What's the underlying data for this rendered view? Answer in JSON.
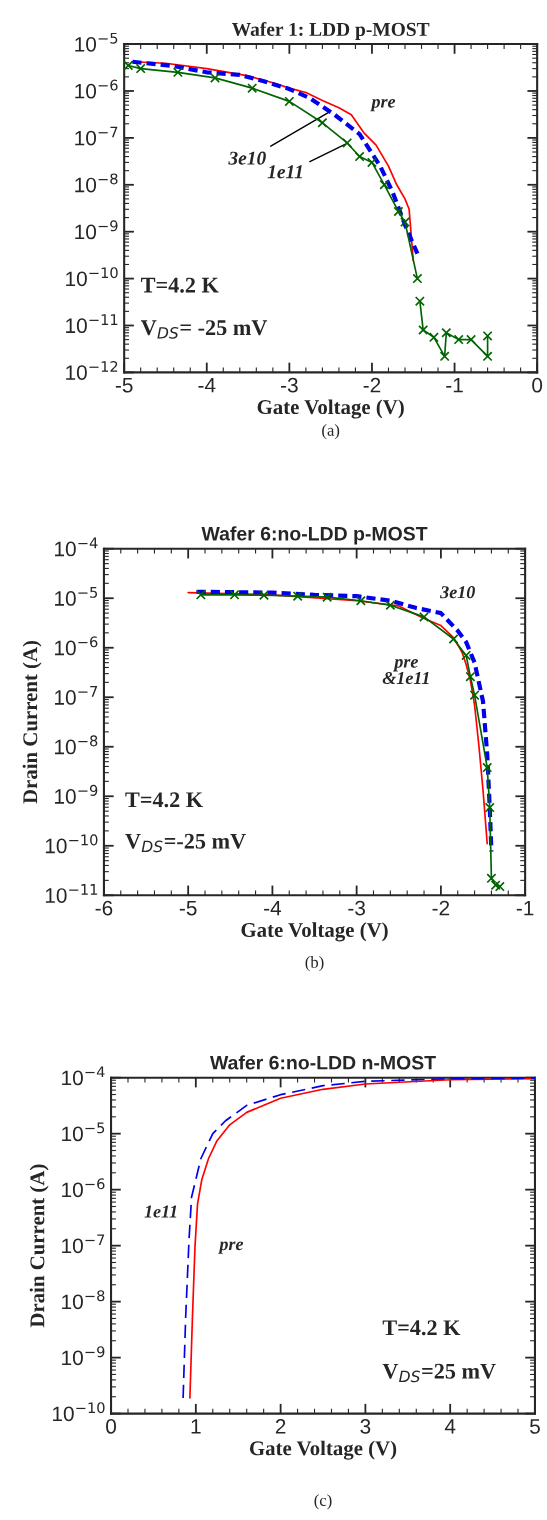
{
  "chart_data": [
    {
      "type": "line",
      "title": "Wafer 1: LDD p-MOST",
      "xlabel": "Gate Voltage (V)",
      "log": "y",
      "xlim": [
        -5,
        0
      ],
      "xticks": [
        -5,
        -4,
        -3,
        -2,
        -1,
        0
      ],
      "ylim": [
        1e-12,
        1e-05
      ],
      "yticks": [
        {
          "value": 1e-12,
          "label": "10$^{−12}$"
        },
        {
          "value": 1e-11,
          "label": "10$^{−11}$"
        },
        {
          "value": 1e-10,
          "label": "10$^{−10}$"
        },
        {
          "value": 1e-09,
          "label": "10$^{−9}$"
        },
        {
          "value": 1e-08,
          "label": "10$^{−8}$"
        },
        {
          "value": 1e-07,
          "label": "10$^{−7}$"
        },
        {
          "value": 1e-06,
          "label": "10$^{−6}$"
        },
        {
          "value": 1e-05,
          "label": "10$^{−5}$"
        }
      ],
      "series": [
        {
          "color": "#ff0000",
          "line_style": "solid",
          "marker": "none",
          "x": [
            -4.9,
            -4.5,
            -4.0,
            -3.5,
            -3.2,
            -3.0,
            -2.8,
            -2.6,
            -2.4,
            -2.25,
            -2.1,
            -1.95,
            -1.8,
            -1.7,
            -1.6,
            -1.55,
            -1.5
          ],
          "values": [
            4.2e-06,
            3.9e-06,
            3e-06,
            2.1e-06,
            1.5e-06,
            1.15e-06,
            9.3e-07,
            6.3e-07,
            4.4e-07,
            3.1e-07,
            1.3e-07,
            7e-08,
            2.5e-08,
            1e-08,
            5e-09,
            3e-09,
            2.4e-10
          ]
        },
        {
          "color": "#0000ee",
          "line_style": "dashed",
          "marker": "none",
          "x": [
            -4.9,
            -4.4,
            -4.0,
            -3.6,
            -3.3,
            -3.0,
            -2.75,
            -2.45,
            -2.15,
            -1.9,
            -1.75,
            -1.6,
            -1.45
          ],
          "values": [
            4.2e-06,
            3.4e-06,
            2.5e-06,
            2.2e-06,
            1.6e-06,
            1.1e-06,
            7e-07,
            3.1e-07,
            1.2e-07,
            2.5e-08,
            7e-09,
            1.4e-09,
            3.4e-10
          ]
        },
        {
          "color": "#006400",
          "line_style": "solid",
          "marker": "cross",
          "x": [
            -4.95,
            -4.8,
            -4.35,
            -3.9,
            -3.45,
            -3.0,
            -2.6,
            -2.3,
            -2.15,
            -2.0,
            -1.85,
            -1.68,
            -1.6,
            -1.45,
            -1.43,
            -1.42,
            -1.38,
            -1.25,
            -1.12,
            -1.1,
            -0.95,
            -0.8,
            -0.6,
            -0.6
          ],
          "values": [
            3.5e-06,
            3e-06,
            2.5e-06,
            1.9e-06,
            1.15e-06,
            6e-07,
            2.1e-07,
            7.8e-08,
            4e-08,
            3e-08,
            1e-08,
            2.7e-09,
            1.6e-09,
            1e-10,
            null,
            3.3e-11,
            8e-12,
            5.6e-12,
            2.2e-12,
            7e-12,
            5e-12,
            5e-12,
            2.2e-12,
            6e-12
          ]
        }
      ],
      "annotations": [
        "pre",
        {
          "text": "3e10",
          "x": -2.5,
          "y": 3.7e-07
        },
        {
          "text": "1e11",
          "x": -2.29,
          "y": 7.8e-08
        },
        "T=4.2 K",
        "V$_{DS}$= -25 mV",
        "(a)"
      ]
    },
    {
      "type": "line",
      "title": "Wafer 6:no-LDD p-MOST",
      "xlabel": "Gate Voltage (V)",
      "ylabel": "Drain Current (A)",
      "log": "y",
      "xlim": [
        -6,
        -1
      ],
      "xticks": [
        -6,
        -5,
        -4,
        -3,
        -2,
        -1
      ],
      "ylim": [
        1e-11,
        0.0001
      ],
      "yticks": [
        {
          "value": 1e-11,
          "label": "10$^{−11}$"
        },
        {
          "value": 1e-10,
          "label": "10$^{−10}$"
        },
        {
          "value": 1e-09,
          "label": "10$^{−9}$"
        },
        {
          "value": 1e-08,
          "label": "10$^{−8}$"
        },
        {
          "value": 1e-07,
          "label": "10$^{−7}$"
        },
        {
          "value": 1e-06,
          "label": "10$^{−6}$"
        },
        {
          "value": 1e-05,
          "label": "10$^{−5}$"
        },
        {
          "value": 0.0001,
          "label": "10$^{−4}$"
        }
      ],
      "series": [
        {
          "color": "#ff0000",
          "line_style": "solid",
          "marker": "none",
          "x": [
            -5.0,
            -4.0,
            -3.0,
            -2.5,
            -2.2,
            -2.0,
            -1.85,
            -1.75,
            -1.7,
            -1.65,
            -1.6,
            -1.55,
            -1.5,
            -1.45
          ],
          "values": [
            1.3e-05,
            1.17e-05,
            8.9e-06,
            7e-06,
            3.9e-06,
            2.8e-06,
            1.6e-06,
            8.2e-07,
            4.6e-07,
            2.2e-07,
            6.9e-08,
            1.1e-08,
            1.35e-09,
            1.1e-10
          ]
        },
        {
          "color": "#0000ee",
          "line_style": "dashed",
          "marker": "none",
          "x": [
            -4.9,
            -4.0,
            -3.5,
            -3.0,
            -2.6,
            -2.3,
            -2.0,
            -1.8,
            -1.7,
            -1.6,
            -1.5,
            -1.45,
            -1.42,
            -1.4
          ],
          "values": [
            1.35e-05,
            1.3e-05,
            1.17e-05,
            1.1e-05,
            8.9e-06,
            6.4e-06,
            5e-06,
            2.2e-06,
            1.3e-06,
            5e-07,
            8.3e-08,
            7e-09,
            5.9e-10,
            7.6e-11
          ]
        },
        {
          "color": "#006400",
          "line_style": "solid",
          "marker": "cross",
          "x": [
            -4.85,
            -4.45,
            -4.1,
            -3.7,
            -3.35,
            -2.95,
            -2.6,
            -2.2,
            -1.85,
            -1.7,
            -1.65,
            -1.6,
            -1.45,
            -1.42,
            -1.4,
            -1.35,
            -1.3
          ],
          "values": [
            1.17e-05,
            1.17e-05,
            1.15e-05,
            1.1e-05,
            1.05e-05,
            8.9e-06,
            7.2e-06,
            4.2e-06,
            1.5e-06,
            7e-07,
            2.6e-07,
            1.1e-07,
            3.8e-09,
            5.9e-10,
            2.2e-11,
            1.6e-11,
            1.5e-11
          ]
        }
      ],
      "annotations": [
        "3e10",
        "pre\n&1e11",
        "T=4.2 K",
        "V$_{DS}$=-25 mV",
        "(b)"
      ]
    },
    {
      "type": "line",
      "title": "Wafer 6:no-LDD n-MOST",
      "xlabel": "Gate Voltage (V)",
      "ylabel": "Drain Current (A)",
      "log": "y",
      "xlim": [
        0,
        5
      ],
      "xticks": [
        0,
        1,
        2,
        3,
        4,
        5
      ],
      "ylim": [
        1e-10,
        0.0001
      ],
      "yticks": [
        {
          "value": 1e-10,
          "label": "10$^{−10}$"
        },
        {
          "value": 1e-09,
          "label": "10$^{−9}$"
        },
        {
          "value": 1e-08,
          "label": "10$^{−8}$"
        },
        {
          "value": 1e-07,
          "label": "10$^{−7}$"
        },
        {
          "value": 1e-06,
          "label": "10$^{−6}$"
        },
        {
          "value": 1e-05,
          "label": "10$^{−5}$"
        },
        {
          "value": 0.0001,
          "label": "10$^{−4}$"
        }
      ],
      "series": [
        {
          "color": "#ff0000",
          "line_style": "solid",
          "marker": "none",
          "x": [
            0.93,
            0.96,
            0.99,
            1.02,
            1.07,
            1.15,
            1.25,
            1.4,
            1.6,
            2.0,
            2.5,
            3.0,
            4.0,
            5.0
          ],
          "values": [
            1.9e-10,
            5.2e-09,
            9.5e-08,
            5.5e-07,
            1.5e-06,
            3.6e-06,
            7.5e-06,
            1.44e-05,
            2.4e-05,
            4.3e-05,
            6.2e-05,
            7.7e-05,
            9.2e-05,
            9.6e-05
          ]
        },
        {
          "color": "#0000ee",
          "line_style": "dashed",
          "marker": "none",
          "x": [
            0.85,
            0.88,
            0.92,
            0.95,
            1.06,
            1.2,
            1.35,
            1.6,
            2.0,
            2.5,
            3.0,
            4.0,
            5.0
          ],
          "values": [
            1.9e-10,
            5.2e-09,
            1.3e-07,
            7.4e-07,
            3.6e-06,
            1e-05,
            1.7e-05,
            3.2e-05,
            4.97e-05,
            7.2e-05,
            8.6e-05,
            9.6e-05,
            9.8e-05
          ]
        }
      ],
      "annotations": [
        "1e11",
        "pre",
        "T=4.2 K",
        "V$_{DS}$=25 mV",
        "(c)"
      ]
    }
  ]
}
